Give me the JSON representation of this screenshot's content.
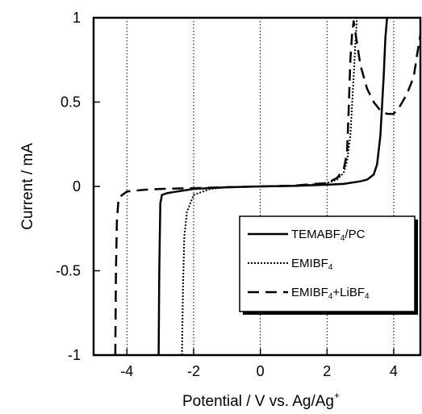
{
  "chart_data": {
    "type": "line",
    "xlabel": "Potential / V vs. Ag/Ag",
    "xlabel_sup": "+",
    "ylabel": "Current / mA",
    "xlim": [
      -5,
      4.8
    ],
    "ylim": [
      -1,
      1
    ],
    "xticks": [
      -4,
      -2,
      0,
      2,
      4
    ],
    "xtick_labels": [
      "-4",
      "-2",
      "0",
      "2",
      "4"
    ],
    "yticks": [
      -1,
      -0.5,
      0,
      0.5,
      1
    ],
    "ytick_labels": [
      "-1",
      "-0.5",
      "0",
      "0.5",
      "1"
    ],
    "grid": "vertical dotted lines at x ticks",
    "legend_position": "lower-right",
    "series": [
      {
        "name": "TEMABF4/PC",
        "legend_parts": [
          {
            "t": "TEMABF",
            "s": false
          },
          {
            "t": "4",
            "s": true
          },
          {
            "t": "/PC",
            "s": false
          }
        ],
        "style": "solid",
        "x": [
          -3.05,
          -3.03,
          -3.0,
          -2.95,
          -2.8,
          -2.5,
          -2.0,
          -1.0,
          0,
          1.0,
          2.0,
          2.5,
          3.0,
          3.2,
          3.4,
          3.5,
          3.6,
          3.7,
          3.75,
          3.8
        ],
        "y": [
          -1.0,
          -0.5,
          -0.1,
          -0.05,
          -0.04,
          -0.03,
          -0.015,
          -0.005,
          0,
          0.003,
          0.01,
          0.015,
          0.03,
          0.04,
          0.07,
          0.13,
          0.3,
          0.65,
          0.88,
          1.0
        ]
      },
      {
        "name": "EMIBF4",
        "legend_parts": [
          {
            "t": "EMIBF",
            "s": false
          },
          {
            "t": "4",
            "s": true
          }
        ],
        "style": "dotted",
        "x": [
          -2.35,
          -2.32,
          -2.28,
          -2.2,
          -2.0,
          -1.5,
          -1.0,
          0,
          1.0,
          1.5,
          2.0,
          2.3,
          2.5,
          2.6,
          2.7,
          2.8,
          2.85,
          2.9
        ],
        "y": [
          -1.0,
          -0.6,
          -0.3,
          -0.15,
          -0.05,
          -0.015,
          -0.005,
          0,
          0.005,
          0.01,
          0.02,
          0.04,
          0.08,
          0.15,
          0.3,
          0.65,
          0.85,
          1.0
        ]
      },
      {
        "name": "EMIBF4+LiBF4",
        "legend_parts": [
          {
            "t": "EMIBF",
            "s": false
          },
          {
            "t": "4",
            "s": true
          },
          {
            "t": "+LiBF",
            "s": false
          },
          {
            "t": "4",
            "s": true
          }
        ],
        "style": "dashed",
        "x": [
          -4.35,
          -4.33,
          -4.3,
          -4.25,
          -4.2,
          -4.0,
          -3.5,
          -3.0,
          -2.0,
          -1.0,
          0,
          1.0,
          2.0,
          2.3,
          2.5,
          2.6,
          2.65,
          2.7,
          2.75,
          2.8,
          3.0,
          3.2,
          3.4,
          3.6,
          3.8,
          4.0,
          4.2,
          4.4,
          4.6,
          4.7,
          4.8
        ],
        "y": [
          -1.0,
          -0.5,
          -0.2,
          -0.07,
          -0.06,
          -0.03,
          -0.02,
          -0.015,
          -0.01,
          -0.005,
          0,
          0.005,
          0.02,
          0.05,
          0.1,
          0.2,
          0.45,
          0.75,
          0.9,
          0.98,
          0.72,
          0.58,
          0.5,
          0.45,
          0.43,
          0.43,
          0.48,
          0.55,
          0.65,
          0.78,
          0.9
        ]
      }
    ]
  }
}
